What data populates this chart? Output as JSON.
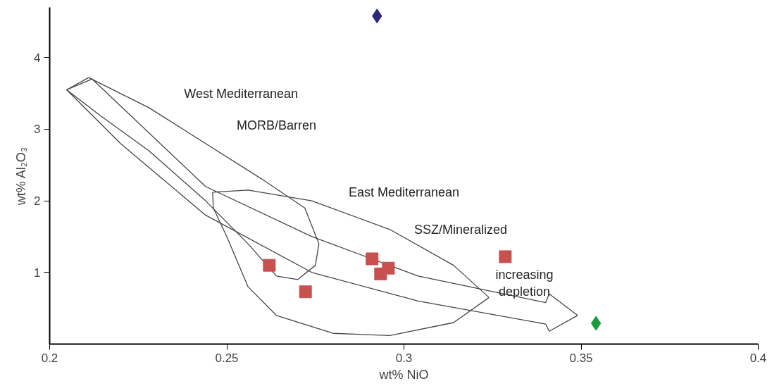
{
  "chart_data": {
    "type": "scatter",
    "xlabel": "wt% NiO",
    "ylabel": "wt% Al₂O₃",
    "xlim": [
      0.2,
      0.4
    ],
    "ylim": [
      0,
      4.7
    ],
    "xticks": [
      0.2,
      0.25,
      0.3,
      0.35,
      0.4
    ],
    "yticks": [
      1,
      2,
      3,
      4
    ],
    "grid": false,
    "series": [
      {
        "type": "line",
        "color": "#444444",
        "x": [
          0.2048,
          0.211,
          0.228,
          0.244,
          0.26,
          0.272,
          0.276
        ],
        "values": [
          3.55,
          3.72,
          3.3,
          2.8,
          2.3,
          1.9,
          1.4
        ]
      },
      {
        "type": "line",
        "color": "#444444",
        "x": [
          0.2048,
          0.214,
          0.228,
          0.244,
          0.256,
          0.264,
          0.27,
          0.275,
          0.276
        ],
        "values": [
          3.55,
          3.2,
          2.7,
          2.0,
          1.4,
          0.95,
          0.9,
          1.1,
          1.4
        ]
      },
      {
        "type": "line",
        "color": "#444444",
        "x": [
          0.2048,
          0.212,
          0.244,
          0.274,
          0.304,
          0.34,
          0.341,
          0.349
        ],
        "values": [
          3.55,
          3.7,
          2.2,
          1.5,
          0.95,
          0.58,
          0.7,
          0.4
        ]
      },
      {
        "type": "line",
        "color": "#444444",
        "x": [
          0.2048,
          0.22,
          0.244,
          0.274,
          0.304,
          0.34,
          0.341,
          0.349
        ],
        "values": [
          3.55,
          2.8,
          1.8,
          1.0,
          0.6,
          0.28,
          0.18,
          0.4
        ]
      },
      {
        "type": "line",
        "color": "#444444",
        "x": [
          0.246,
          0.256,
          0.274,
          0.296,
          0.314,
          0.324
        ],
        "values": [
          2.12,
          2.15,
          2.0,
          1.6,
          1.1,
          0.65
        ]
      },
      {
        "type": "line",
        "color": "#444444",
        "x": [
          0.246,
          0.2462,
          0.25,
          0.256,
          0.264,
          0.28,
          0.296,
          0.314,
          0.324
        ],
        "values": [
          2.12,
          1.9,
          1.5,
          0.8,
          0.4,
          0.15,
          0.12,
          0.3,
          0.65
        ]
      },
      {
        "color": "#c8504f",
        "marker": "square",
        "x": [
          0.262,
          0.2722,
          0.291,
          0.2934,
          0.2956,
          0.3286
        ],
        "values": [
          1.1,
          0.73,
          1.19,
          0.98,
          1.06,
          1.22
        ]
      },
      {
        "color": "#2e2a7a",
        "marker": "diamond",
        "x": [
          0.2924
        ],
        "values": [
          4.58
        ]
      },
      {
        "color": "#1a9a3a",
        "marker": "diamond",
        "x": [
          0.3542
        ],
        "values": [
          0.29
        ]
      }
    ],
    "annotations": [
      "West Mediterranean",
      "MORB/Barren",
      "East Mediterranean",
      "SSZ/Mineralized",
      "increasing\ndepletion"
    ]
  }
}
